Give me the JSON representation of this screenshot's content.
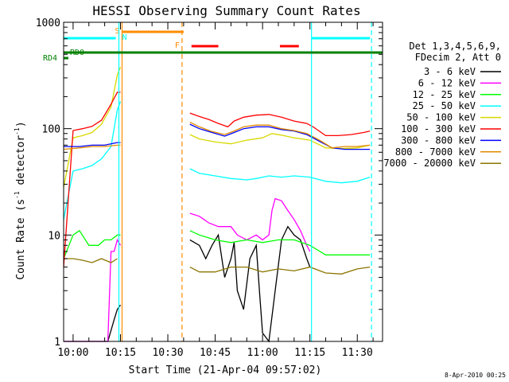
{
  "chart_data": {
    "type": "line",
    "title": "HESSI Observing Summary Count Rates",
    "xlabel": "Start Time (21-Apr-04 09:57:02)",
    "ylabel_main": "Count Rate (s",
    "ylabel_sup1": "-1",
    "ylabel_mid": " detector",
    "ylabel_sup2": "-1",
    "ylabel_end": ")",
    "y_scale": "log",
    "ylim": [
      1,
      1000
    ],
    "y_ticks": [
      {
        "v": 1,
        "label": "1"
      },
      {
        "v": 10,
        "label": "10"
      },
      {
        "v": 100,
        "label": "100"
      },
      {
        "v": 1000,
        "label": "1000"
      }
    ],
    "x_range_minutes": [
      -3,
      98
    ],
    "x_ticks": [
      {
        "m": 0,
        "label": "10:00"
      },
      {
        "m": 15,
        "label": "10:15"
      },
      {
        "m": 30,
        "label": "10:30"
      },
      {
        "m": 45,
        "label": "10:45"
      },
      {
        "m": 60,
        "label": "11:00"
      },
      {
        "m": 75,
        "label": "11:15"
      },
      {
        "m": 90,
        "label": "11:30"
      }
    ],
    "legend_header": [
      "Det 1,3,4,5,6,9,",
      "FDecim 2, Att 0"
    ],
    "legend_position": "right",
    "series": [
      {
        "name": "3 - 6 keV",
        "color": "#000000",
        "points": [
          [
            -3,
            1
          ],
          [
            11,
            1
          ],
          [
            13,
            1.6
          ],
          [
            14,
            2
          ],
          [
            15,
            2.2
          ],
          [
            20,
            0
          ],
          [
            36,
            0
          ],
          [
            37,
            9
          ],
          [
            40,
            8
          ],
          [
            42,
            6
          ],
          [
            44,
            8
          ],
          [
            46,
            10
          ],
          [
            48,
            4
          ],
          [
            50,
            6
          ],
          [
            51,
            8.5
          ],
          [
            52,
            3
          ],
          [
            54,
            2
          ],
          [
            56,
            6
          ],
          [
            58,
            8
          ],
          [
            59,
            3
          ],
          [
            60,
            1.2
          ],
          [
            62,
            1
          ],
          [
            64,
            3
          ],
          [
            66,
            9
          ],
          [
            68,
            12
          ],
          [
            70,
            10
          ],
          [
            72,
            9
          ],
          [
            74,
            6
          ],
          [
            75,
            5
          ],
          [
            76,
            0
          ]
        ]
      },
      {
        "name": "6 - 12 keV",
        "color": "#ff00ff",
        "points": [
          [
            -3,
            1
          ],
          [
            11,
            1
          ],
          [
            12,
            7
          ],
          [
            13,
            7
          ],
          [
            14,
            9
          ],
          [
            15,
            8
          ],
          [
            20,
            0
          ],
          [
            36,
            0
          ],
          [
            37,
            16
          ],
          [
            40,
            15
          ],
          [
            43,
            13
          ],
          [
            46,
            12
          ],
          [
            50,
            12
          ],
          [
            52,
            10
          ],
          [
            55,
            9
          ],
          [
            58,
            10
          ],
          [
            60,
            9
          ],
          [
            62,
            10
          ],
          [
            63,
            17
          ],
          [
            64,
            22
          ],
          [
            66,
            21
          ],
          [
            68,
            17
          ],
          [
            70,
            14
          ],
          [
            72,
            11
          ],
          [
            74,
            8
          ],
          [
            75,
            7
          ],
          [
            76,
            0
          ]
        ]
      },
      {
        "name": "12 - 25 keV",
        "color": "#00ff00",
        "points": [
          [
            -3,
            6
          ],
          [
            0,
            10
          ],
          [
            2,
            11
          ],
          [
            5,
            8
          ],
          [
            8,
            8
          ],
          [
            10,
            9
          ],
          [
            12,
            9
          ],
          [
            14,
            10
          ],
          [
            15,
            10
          ],
          [
            20,
            0
          ],
          [
            36,
            0
          ],
          [
            37,
            11
          ],
          [
            40,
            10
          ],
          [
            45,
            9
          ],
          [
            50,
            8.5
          ],
          [
            55,
            9
          ],
          [
            60,
            8.5
          ],
          [
            65,
            9
          ],
          [
            70,
            9
          ],
          [
            75,
            8
          ],
          [
            80,
            6.5
          ],
          [
            85,
            6.5
          ],
          [
            90,
            6.5
          ],
          [
            94,
            6.5
          ]
        ]
      },
      {
        "name": "25 - 50 keV",
        "color": "#00ffff",
        "points": [
          [
            -3,
            14
          ],
          [
            0,
            40
          ],
          [
            3,
            42
          ],
          [
            6,
            45
          ],
          [
            9,
            52
          ],
          [
            12,
            68
          ],
          [
            14,
            150
          ],
          [
            15,
            180
          ],
          [
            20,
            0
          ],
          [
            36,
            0
          ],
          [
            37,
            42
          ],
          [
            40,
            38
          ],
          [
            45,
            36
          ],
          [
            50,
            34
          ],
          [
            55,
            33
          ],
          [
            58,
            34
          ],
          [
            62,
            36
          ],
          [
            66,
            35
          ],
          [
            70,
            36
          ],
          [
            75,
            35
          ],
          [
            80,
            32
          ],
          [
            85,
            31
          ],
          [
            90,
            32
          ],
          [
            94,
            35
          ]
        ]
      },
      {
        "name": "50 - 100 keV",
        "color": "#d8d800",
        "points": [
          [
            -3,
            28
          ],
          [
            0,
            82
          ],
          [
            3,
            86
          ],
          [
            6,
            92
          ],
          [
            9,
            110
          ],
          [
            12,
            160
          ],
          [
            14,
            320
          ],
          [
            15,
            380
          ],
          [
            20,
            0
          ],
          [
            36,
            0
          ],
          [
            37,
            88
          ],
          [
            40,
            80
          ],
          [
            45,
            75
          ],
          [
            50,
            72
          ],
          [
            55,
            78
          ],
          [
            60,
            82
          ],
          [
            63,
            90
          ],
          [
            66,
            87
          ],
          [
            70,
            82
          ],
          [
            75,
            78
          ],
          [
            80,
            66
          ],
          [
            85,
            65
          ],
          [
            90,
            66
          ],
          [
            94,
            70
          ]
        ]
      },
      {
        "name": "100 - 300 keV",
        "color": "#ff0000",
        "points": [
          [
            -3,
            5
          ],
          [
            0,
            96
          ],
          [
            3,
            100
          ],
          [
            6,
            105
          ],
          [
            9,
            120
          ],
          [
            12,
            170
          ],
          [
            14,
            220
          ],
          [
            15,
            220
          ],
          [
            20,
            0
          ],
          [
            36,
            0
          ],
          [
            37,
            140
          ],
          [
            40,
            130
          ],
          [
            43,
            122
          ],
          [
            46,
            112
          ],
          [
            49,
            104
          ],
          [
            51,
            118
          ],
          [
            54,
            128
          ],
          [
            58,
            134
          ],
          [
            62,
            136
          ],
          [
            66,
            128
          ],
          [
            70,
            118
          ],
          [
            74,
            112
          ],
          [
            76,
            104
          ],
          [
            80,
            86
          ],
          [
            84,
            86
          ],
          [
            88,
            88
          ],
          [
            92,
            92
          ],
          [
            94,
            95
          ]
        ]
      },
      {
        "name": "300 - 800 keV",
        "color": "#0000ff",
        "points": [
          [
            -3,
            68
          ],
          [
            2,
            68
          ],
          [
            6,
            70
          ],
          [
            10,
            70
          ],
          [
            14,
            74
          ],
          [
            15,
            74
          ],
          [
            20,
            0
          ],
          [
            36,
            0
          ],
          [
            37,
            110
          ],
          [
            40,
            100
          ],
          [
            44,
            92
          ],
          [
            48,
            85
          ],
          [
            51,
            92
          ],
          [
            54,
            100
          ],
          [
            58,
            104
          ],
          [
            62,
            104
          ],
          [
            66,
            98
          ],
          [
            70,
            95
          ],
          [
            74,
            88
          ],
          [
            78,
            76
          ],
          [
            82,
            66
          ],
          [
            86,
            64
          ],
          [
            90,
            64
          ],
          [
            94,
            64
          ]
        ]
      },
      {
        "name": "800 - 7000 keV",
        "color": "#e08a00",
        "points": [
          [
            -3,
            64
          ],
          [
            2,
            66
          ],
          [
            6,
            68
          ],
          [
            10,
            68
          ],
          [
            14,
            70
          ],
          [
            15,
            70
          ],
          [
            20,
            0
          ],
          [
            36,
            0
          ],
          [
            37,
            115
          ],
          [
            40,
            104
          ],
          [
            44,
            94
          ],
          [
            48,
            88
          ],
          [
            51,
            95
          ],
          [
            54,
            104
          ],
          [
            58,
            108
          ],
          [
            62,
            108
          ],
          [
            66,
            100
          ],
          [
            70,
            96
          ],
          [
            74,
            90
          ],
          [
            78,
            78
          ],
          [
            82,
            66
          ],
          [
            86,
            68
          ],
          [
            90,
            68
          ],
          [
            94,
            70
          ]
        ]
      },
      {
        "name": "7000 - 20000 keV",
        "color": "#8b7500",
        "points": [
          [
            -3,
            6
          ],
          [
            0,
            6
          ],
          [
            3,
            5.8
          ],
          [
            6,
            5.5
          ],
          [
            9,
            6
          ],
          [
            12,
            5.5
          ],
          [
            14,
            6
          ],
          [
            20,
            0
          ],
          [
            36,
            0
          ],
          [
            37,
            5
          ],
          [
            40,
            4.5
          ],
          [
            45,
            4.5
          ],
          [
            50,
            5
          ],
          [
            55,
            5
          ],
          [
            60,
            4.5
          ],
          [
            65,
            4.8
          ],
          [
            70,
            4.6
          ],
          [
            75,
            5
          ],
          [
            80,
            4.4
          ],
          [
            85,
            4.3
          ],
          [
            90,
            4.8
          ],
          [
            94,
            5
          ]
        ]
      }
    ],
    "markers": [
      {
        "label": "S",
        "minute": 15.5,
        "color": "#ff8c00",
        "style": "solid"
      },
      {
        "label": "N",
        "minute": 14.5,
        "color": "#00ffff",
        "style": "solid"
      },
      {
        "label": "F",
        "minute": 34.5,
        "color": "#ff8c00",
        "style": "dashed"
      },
      {
        "label": "",
        "minute": 75.5,
        "color": "#00ffff",
        "style": "solid"
      },
      {
        "label": "",
        "minute": 94.5,
        "color": "#00ffff",
        "style": "dashed"
      }
    ],
    "bars": [
      {
        "label": "RD0",
        "color": "#008000"
      },
      {
        "label": "RD4",
        "color": "#008000"
      }
    ],
    "timestamp": "8-Apr-2010 00:25"
  }
}
